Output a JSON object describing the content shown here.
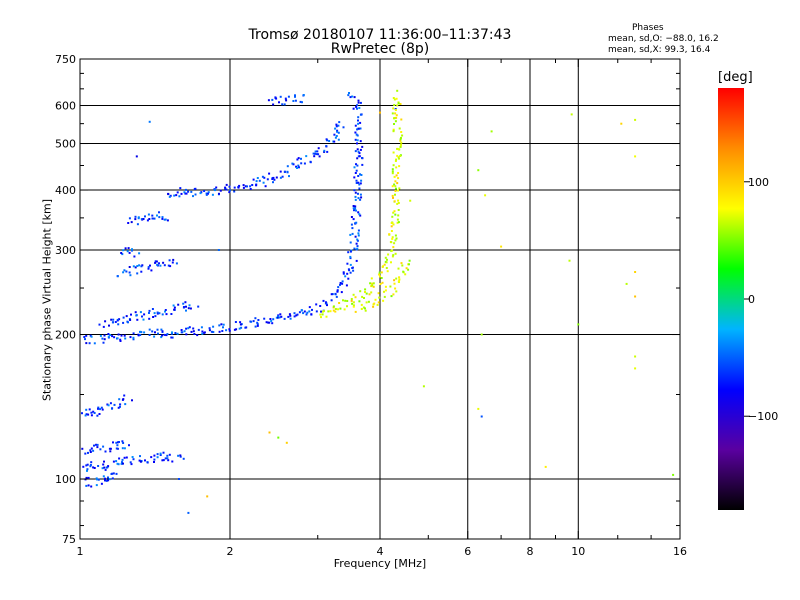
{
  "title_line1": "Tromsø 20180107 11:36:00–11:37:43",
  "title_line2": "RwPretec (8p)",
  "phases": {
    "heading": "Phases",
    "o_mode": "mean, sd,O: −88.0, 16.2",
    "x_mode": "mean, sd,X: 99.3, 16.4"
  },
  "chart_data": {
    "type": "scatter",
    "xlabel": "Frequency [MHz]",
    "ylabel": "Stationary phase Virtual Height [km]",
    "x_scale": "log",
    "y_scale": "log",
    "xlim": [
      1,
      16
    ],
    "ylim": [
      75,
      750
    ],
    "x_ticks": [
      1,
      2,
      4,
      6,
      8,
      10,
      16
    ],
    "x_tick_labels": [
      "1",
      "2",
      "4",
      "6",
      "8",
      "10",
      "16"
    ],
    "x_minor_ticks": [
      3,
      5,
      7,
      9,
      12,
      14
    ],
    "y_ticks": [
      75,
      100,
      200,
      300,
      400,
      500,
      600,
      750
    ],
    "y_tick_labels": [
      "75",
      "100",
      "200",
      "300",
      "400",
      "500",
      "600",
      "750"
    ],
    "y_minor_ticks": [
      80,
      90,
      150,
      250,
      350,
      450,
      550,
      650,
      700
    ],
    "grid_x": [
      1,
      2,
      4,
      6,
      8,
      10
    ],
    "grid_y": [
      100,
      200,
      300,
      400,
      500,
      600
    ],
    "colorbar": {
      "unit": "[deg]",
      "range": [
        -180,
        180
      ],
      "ticks": [
        100,
        0,
        -100
      ],
      "tick_labels": [
        "100",
        "0",
        "−100"
      ],
      "colors": [
        "#000000",
        "#5a00a0",
        "#0000ff",
        "#00b4ff",
        "#00ff00",
        "#ffff00",
        "#ff8c00",
        "#ff0000"
      ]
    },
    "series": [
      {
        "mode": "O",
        "phase": -88,
        "traces": [
          [
            [
              1.0,
              99
            ],
            [
              1.05,
              99
            ],
            [
              1.1,
              100
            ],
            [
              1.15,
              101
            ],
            [
              1.2,
              102
            ]
          ],
          [
            [
              1.0,
              106
            ],
            [
              1.1,
              107
            ],
            [
              1.2,
              109
            ],
            [
              1.3,
              110
            ],
            [
              1.4,
              111
            ],
            [
              1.5,
              112
            ],
            [
              1.6,
              111
            ]
          ],
          [
            [
              1.0,
              114
            ],
            [
              1.1,
              117
            ],
            [
              1.2,
              118
            ],
            [
              1.25,
              119
            ]
          ],
          [
            [
              1.0,
              137
            ],
            [
              1.05,
              138
            ],
            [
              1.1,
              140
            ],
            [
              1.15,
              143
            ],
            [
              1.2,
              145
            ],
            [
              1.25,
              148
            ]
          ],
          [
            [
              1.0,
              195
            ],
            [
              1.05,
              196
            ],
            [
              1.1,
              197
            ],
            [
              1.2,
              199
            ],
            [
              1.3,
              201
            ],
            [
              1.4,
              202
            ],
            [
              1.5,
              202
            ],
            [
              1.6,
              203
            ],
            [
              1.8,
              205
            ],
            [
              2.0,
              208
            ],
            [
              2.2,
              212
            ],
            [
              2.5,
              217
            ],
            [
              2.8,
              222
            ],
            [
              3.0,
              228
            ],
            [
              3.2,
              240
            ],
            [
              3.4,
              260
            ],
            [
              3.5,
              290
            ],
            [
              3.55,
              330
            ],
            [
              3.58,
              380
            ],
            [
              3.6,
              440
            ],
            [
              3.62,
              520
            ],
            [
              3.6,
              580
            ],
            [
              3.55,
              620
            ],
            [
              3.48,
              640
            ]
          ],
          [
            [
              1.1,
              210
            ],
            [
              1.2,
              214
            ],
            [
              1.3,
              219
            ],
            [
              1.4,
              223
            ],
            [
              1.5,
              226
            ],
            [
              1.6,
              230
            ],
            [
              1.7,
              233
            ]
          ],
          [
            [
              1.2,
              270
            ],
            [
              1.3,
              275
            ],
            [
              1.4,
              280
            ],
            [
              1.5,
              283
            ],
            [
              1.55,
              285
            ]
          ],
          [
            [
              1.2,
              300
            ],
            [
              1.3,
              297
            ]
          ],
          [
            [
              1.25,
              345
            ],
            [
              1.35,
              350
            ],
            [
              1.45,
              355
            ],
            [
              1.5,
              352
            ]
          ],
          [
            [
              1.5,
              397
            ],
            [
              1.7,
              399
            ],
            [
              1.9,
              402
            ],
            [
              2.1,
              406
            ],
            [
              2.3,
              418
            ],
            [
              2.5,
              430
            ],
            [
              2.7,
              450
            ],
            [
              2.9,
              470
            ],
            [
              3.1,
              490
            ],
            [
              3.2,
              510
            ],
            [
              3.3,
              540
            ],
            [
              3.35,
              560
            ]
          ],
          [
            [
              2.4,
              615
            ],
            [
              2.6,
              620
            ],
            [
              2.8,
              625
            ]
          ]
        ],
        "points": [
          [
            1.38,
            555
          ],
          [
            1.3,
            470
          ],
          [
            1.7,
            402
          ],
          [
            1.9,
            300
          ],
          [
            1.65,
            85
          ],
          [
            1.58,
            100
          ],
          [
            4.3,
            590
          ],
          [
            6.4,
            135
          ]
        ]
      },
      {
        "mode": "X",
        "phase": 99,
        "traces": [
          [
            [
              3.0,
              220
            ],
            [
              3.2,
              226
            ],
            [
              3.4,
              232
            ],
            [
              3.6,
              240
            ],
            [
              3.8,
              252
            ],
            [
              4.0,
              265
            ],
            [
              4.1,
              280
            ],
            [
              4.2,
              300
            ],
            [
              4.25,
              340
            ],
            [
              4.3,
              390
            ],
            [
              4.3,
              450
            ],
            [
              4.32,
              520
            ],
            [
              4.3,
              570
            ],
            [
              4.28,
              640
            ]
          ],
          [
            [
              3.6,
              225
            ],
            [
              3.8,
              232
            ],
            [
              4.0,
              240
            ],
            [
              4.2,
              250
            ],
            [
              4.4,
              265
            ],
            [
              4.5,
              290
            ]
          ]
        ],
        "points": [
          [
            4.0,
            580
          ],
          [
            4.6,
            380
          ],
          [
            4.9,
            156
          ],
          [
            2.4,
            125
          ],
          [
            2.5,
            122
          ],
          [
            2.6,
            119
          ],
          [
            1.8,
            92
          ],
          [
            6.4,
            200
          ],
          [
            6.7,
            530
          ],
          [
            6.3,
            440
          ],
          [
            6.5,
            390
          ],
          [
            7.0,
            305
          ],
          [
            9.6,
            285
          ],
          [
            9.7,
            575
          ],
          [
            10.0,
            210
          ],
          [
            12.2,
            550
          ],
          [
            13.0,
            560
          ],
          [
            13.0,
            470
          ],
          [
            13.0,
            270
          ],
          [
            13.0,
            240
          ],
          [
            13.0,
            180
          ],
          [
            13.0,
            170
          ],
          [
            15.5,
            102
          ],
          [
            12.5,
            255
          ],
          [
            6.3,
            140
          ],
          [
            8.6,
            106
          ]
        ]
      }
    ]
  }
}
